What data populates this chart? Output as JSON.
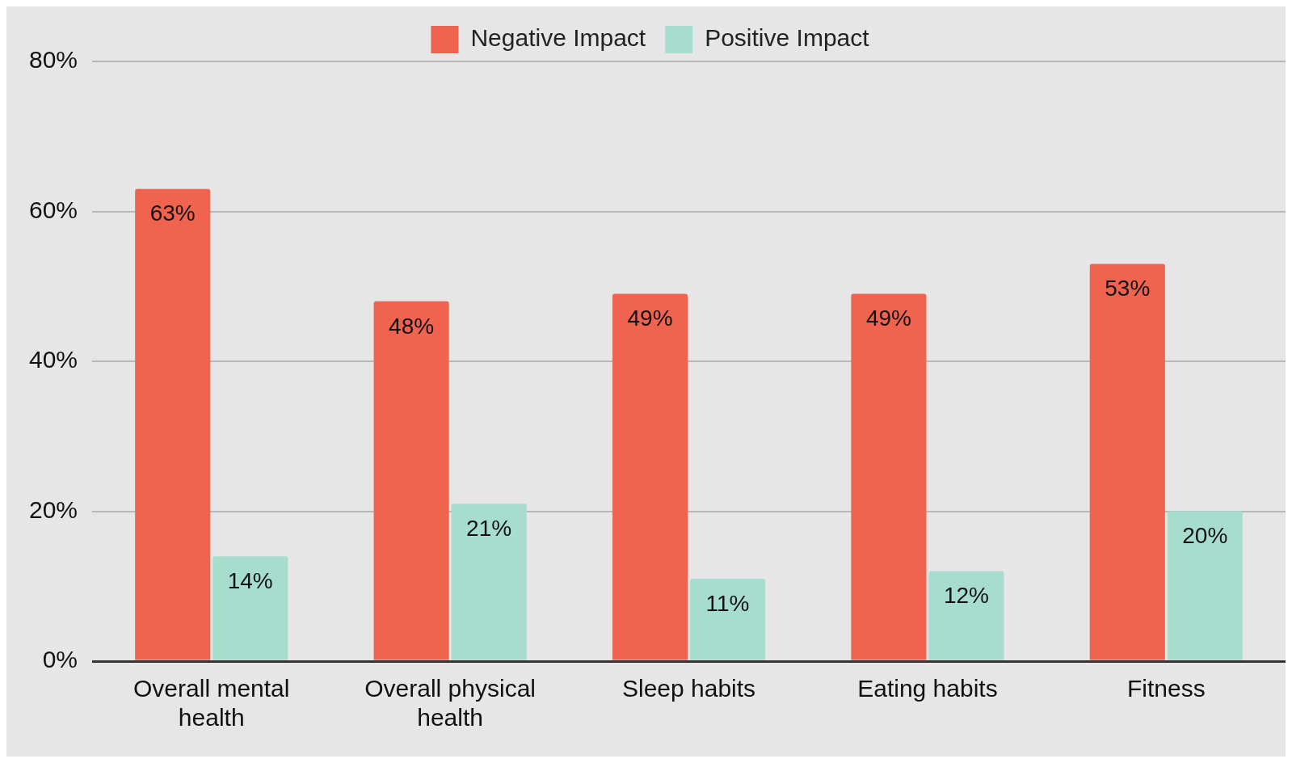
{
  "chart_data": {
    "type": "bar",
    "categories": [
      "Overall mental health",
      "Overall physical health",
      "Sleep habits",
      "Eating habits",
      "Fitness"
    ],
    "series": [
      {
        "name": "Negative Impact",
        "color": "#f0634e",
        "values": [
          63,
          48,
          49,
          49,
          53
        ],
        "value_labels": [
          "63%",
          "48%",
          "49%",
          "49%",
          "53%"
        ]
      },
      {
        "name": "Positive Impact",
        "color": "#a7ddcf",
        "values": [
          14,
          21,
          11,
          12,
          20
        ],
        "value_labels": [
          "14%",
          "21%",
          "11%",
          "12%",
          "20%"
        ]
      }
    ],
    "ylim": [
      0,
      80
    ],
    "yticks": [
      {
        "value": 0,
        "label": "0%"
      },
      {
        "value": 20,
        "label": "20%"
      },
      {
        "value": 40,
        "label": "40%"
      },
      {
        "value": 60,
        "label": "60%"
      },
      {
        "value": 80,
        "label": "80%"
      }
    ],
    "grid": "y",
    "legend": "top"
  }
}
